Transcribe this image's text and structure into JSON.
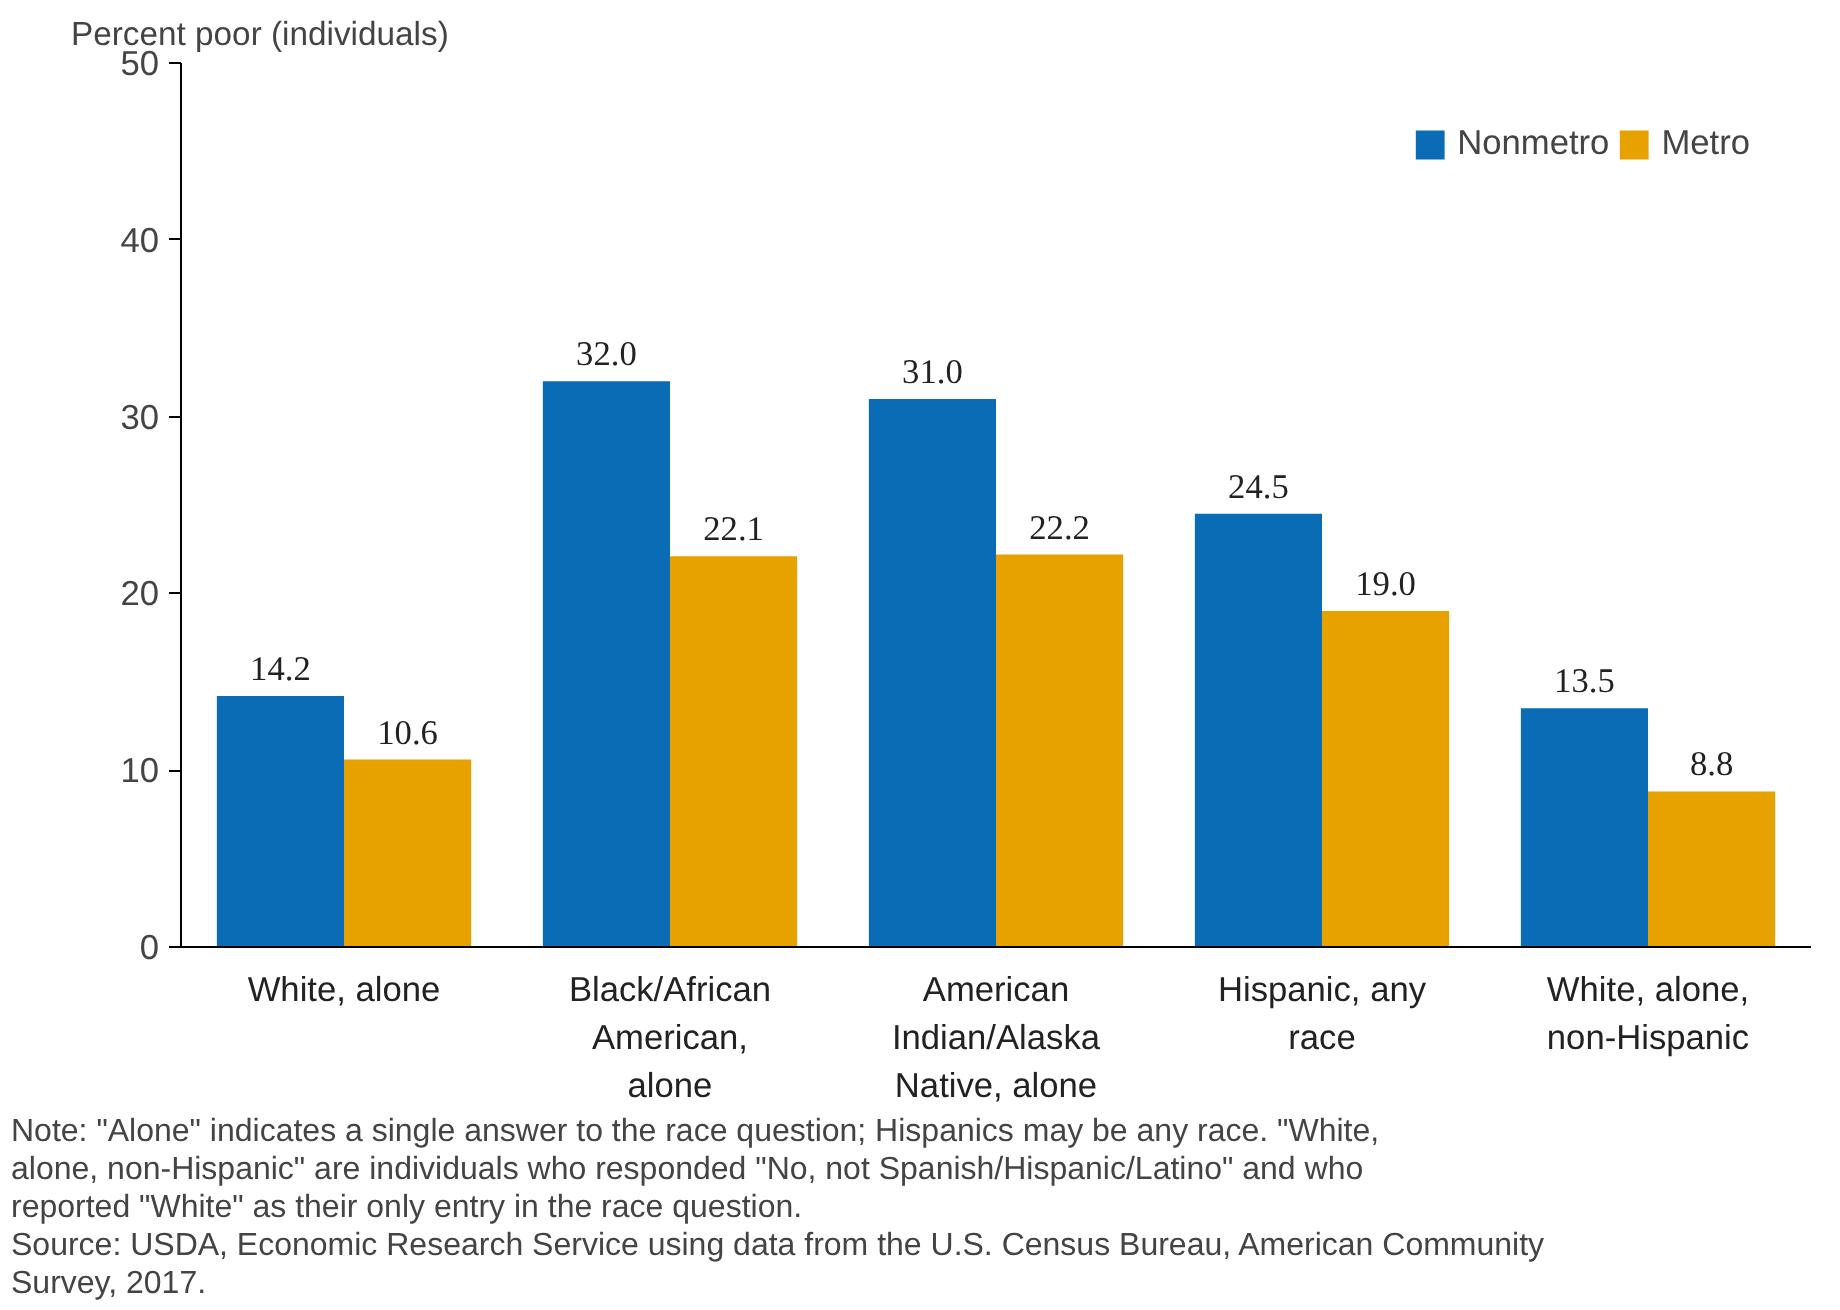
{
  "chart_data": {
    "type": "bar",
    "ylabel": "Percent poor (individuals)",
    "categories": [
      "White, alone",
      "Black/African American, alone",
      "American Indian/Alaska Native, alone",
      "Hispanic, any race",
      "White, alone, non-Hispanic"
    ],
    "series": [
      {
        "name": "Nonmetro",
        "color": "#0a6cb5",
        "values": [
          14.2,
          32.0,
          31.0,
          24.5,
          13.5
        ],
        "value_labels": [
          "14.2",
          "32.0",
          "31.0",
          "24.5",
          "13.5"
        ]
      },
      {
        "name": "Metro",
        "color": "#e8a200",
        "values": [
          10.6,
          22.1,
          22.2,
          19.0,
          8.8
        ],
        "value_labels": [
          "10.6",
          "22.1",
          "22.2",
          "19.0",
          "8.8"
        ]
      }
    ],
    "ylim": [
      0,
      50
    ],
    "yticks": [
      0,
      10,
      20,
      30,
      40,
      50
    ],
    "grid": false,
    "legend": "top right",
    "annotations": [
      "Note: \"Alone\" indicates a single answer to the race question; Hispanics may be any race. \"White, alone, non-Hispanic\" are individuals who responded \"No, not Spanish/Hispanic/Latino\" and who reported \"White\" as their only entry in the race question.",
      "Source: USDA, Economic Research Service using data from the U.S. Census Bureau, American Community Survey, 2017."
    ]
  }
}
